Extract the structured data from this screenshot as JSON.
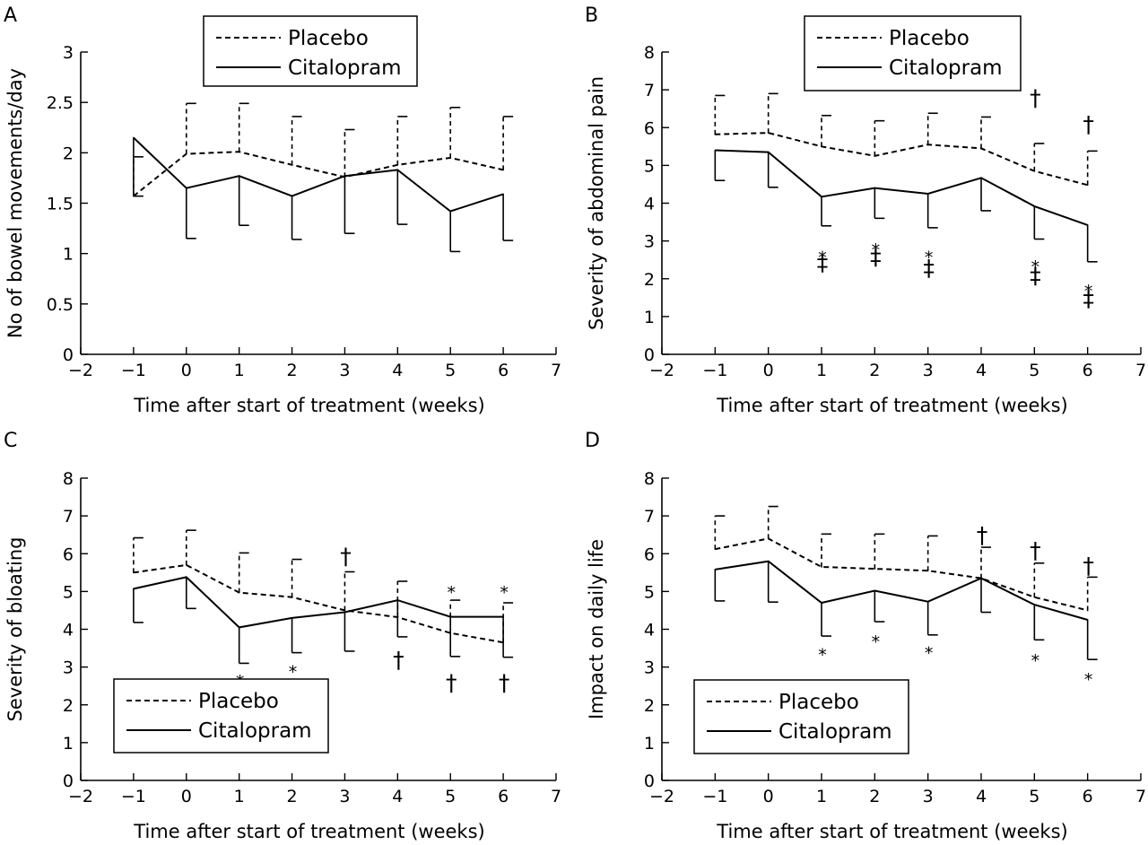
{
  "chart_data": [
    {
      "type": "line",
      "panel_label": "A",
      "xlabel": "Time after start of treatment (weeks)",
      "ylabel": "No of bowel movements/day",
      "xlim": [
        -2,
        7
      ],
      "ylim": [
        0,
        3
      ],
      "xticks": [
        "−2",
        "−1",
        "0",
        "1",
        "2",
        "3",
        "4",
        "5",
        "6",
        "7"
      ],
      "yticks": [
        "0",
        "0.5",
        "1",
        "1.5",
        "2",
        "2.5",
        "3"
      ],
      "grid": false,
      "legend_position": "top-center",
      "x": [
        -1,
        0,
        1,
        2,
        3,
        4,
        5,
        6
      ],
      "series": [
        {
          "name": "Placebo",
          "style": "dashed",
          "values": [
            1.57,
            1.99,
            2.01,
            1.88,
            1.76,
            1.88,
            1.95,
            1.83
          ],
          "error_upper": [
            1.96,
            2.49,
            2.49,
            2.36,
            2.23,
            2.36,
            2.45,
            2.36
          ]
        },
        {
          "name": "Citalopram",
          "style": "solid",
          "values": [
            2.15,
            1.65,
            1.77,
            1.57,
            1.77,
            1.83,
            1.42,
            1.59
          ],
          "error_lower": [
            1.57,
            1.15,
            1.28,
            1.14,
            1.2,
            1.29,
            1.02,
            1.13
          ]
        }
      ],
      "annotations": []
    },
    {
      "type": "line",
      "panel_label": "B",
      "xlabel": "Time after start of treatment (weeks)",
      "ylabel": "Severity of abdominal pain",
      "xlim": [
        -2,
        7
      ],
      "ylim": [
        0,
        8
      ],
      "xticks": [
        "−2",
        "−1",
        "0",
        "1",
        "2",
        "3",
        "4",
        "5",
        "6",
        "7"
      ],
      "yticks": [
        "0",
        "1",
        "2",
        "3",
        "4",
        "5",
        "6",
        "7",
        "8"
      ],
      "grid": false,
      "legend_position": "top-center",
      "x": [
        -1,
        0,
        1,
        2,
        3,
        4,
        5,
        6
      ],
      "series": [
        {
          "name": "Placebo",
          "style": "dashed",
          "values": [
            5.82,
            5.86,
            5.5,
            5.25,
            5.55,
            5.45,
            4.85,
            4.48
          ],
          "error_upper": [
            6.85,
            6.9,
            6.32,
            6.18,
            6.38,
            6.28,
            5.58,
            5.38
          ]
        },
        {
          "name": "Citalopram",
          "style": "solid",
          "values": [
            5.4,
            5.35,
            4.17,
            4.4,
            4.25,
            4.67,
            3.92,
            3.42
          ],
          "error_lower": [
            4.6,
            4.42,
            3.4,
            3.6,
            3.35,
            3.8,
            3.05,
            2.45
          ]
        }
      ],
      "annotations": [
        {
          "x": 1,
          "y": 2.7,
          "text": "*"
        },
        {
          "x": 1,
          "y": 2.45,
          "text": "‡"
        },
        {
          "x": 2,
          "y": 2.9,
          "text": "*"
        },
        {
          "x": 2,
          "y": 2.6,
          "text": "‡"
        },
        {
          "x": 3,
          "y": 2.7,
          "text": "*"
        },
        {
          "x": 3,
          "y": 2.3,
          "text": "‡"
        },
        {
          "x": 5,
          "y": 2.45,
          "text": "*"
        },
        {
          "x": 5,
          "y": 2.1,
          "text": "‡"
        },
        {
          "x": 6,
          "y": 1.8,
          "text": "*"
        },
        {
          "x": 6,
          "y": 1.5,
          "text": "‡"
        },
        {
          "x": 5,
          "y": 6.8,
          "text": "†"
        },
        {
          "x": 6,
          "y": 6.1,
          "text": "†"
        }
      ]
    },
    {
      "type": "line",
      "panel_label": "C",
      "xlabel": "Time after start of treatment (weeks)",
      "ylabel": "Severity of bloating",
      "xlim": [
        -2,
        7
      ],
      "ylim": [
        0,
        8
      ],
      "xticks": [
        "−2",
        "−1",
        "0",
        "1",
        "2",
        "3",
        "4",
        "5",
        "6",
        "7"
      ],
      "yticks": [
        "0",
        "1",
        "2",
        "3",
        "4",
        "5",
        "6",
        "7",
        "8"
      ],
      "grid": false,
      "legend_position": "bottom-left",
      "x": [
        -1,
        0,
        1,
        2,
        3,
        4,
        5,
        6
      ],
      "series": [
        {
          "name": "Placebo",
          "style": "dashed",
          "values": [
            5.5,
            5.7,
            4.97,
            4.85,
            4.5,
            4.32,
            3.9,
            3.65
          ],
          "error_upper": [
            6.42,
            6.62,
            6.02,
            5.85,
            5.52,
            5.27,
            4.77,
            4.7
          ]
        },
        {
          "name": "Citalopram",
          "style": "solid",
          "values": [
            5.07,
            5.38,
            4.05,
            4.3,
            4.45,
            4.77,
            4.33,
            4.33
          ],
          "error_lower": [
            4.18,
            4.55,
            3.1,
            3.38,
            3.42,
            3.8,
            3.28,
            3.26
          ]
        }
      ],
      "annotations": [
        {
          "x": 1,
          "y": 2.75,
          "text": "*"
        },
        {
          "x": 2,
          "y": 3.0,
          "text": "*"
        },
        {
          "x": 3,
          "y": 5.95,
          "text": "†"
        },
        {
          "x": 4,
          "y": 3.2,
          "text": "†"
        },
        {
          "x": 5,
          "y": 5.1,
          "text": "*"
        },
        {
          "x": 5,
          "y": 2.6,
          "text": "†"
        },
        {
          "x": 6,
          "y": 5.1,
          "text": "*"
        },
        {
          "x": 6,
          "y": 2.6,
          "text": "†"
        }
      ]
    },
    {
      "type": "line",
      "panel_label": "D",
      "xlabel": "Time after start of treatment (weeks)",
      "ylabel": "Impact on daily life",
      "xlim": [
        -2,
        7
      ],
      "ylim": [
        0,
        8
      ],
      "xticks": [
        "−2",
        "−1",
        "0",
        "1",
        "2",
        "3",
        "4",
        "5",
        "6",
        "7"
      ],
      "yticks": [
        "0",
        "1",
        "2",
        "3",
        "4",
        "5",
        "6",
        "7",
        "8"
      ],
      "grid": false,
      "legend_position": "bottom-left",
      "x": [
        -1,
        0,
        1,
        2,
        3,
        4,
        5,
        6
      ],
      "series": [
        {
          "name": "Placebo",
          "style": "dashed",
          "values": [
            6.12,
            6.4,
            5.65,
            5.6,
            5.55,
            5.35,
            4.85,
            4.5
          ],
          "error_upper": [
            7.0,
            7.25,
            6.52,
            6.52,
            6.47,
            6.17,
            5.75,
            5.38
          ]
        },
        {
          "name": "Citalopram",
          "style": "solid",
          "values": [
            5.58,
            5.8,
            4.7,
            5.02,
            4.73,
            5.35,
            4.65,
            4.25
          ],
          "error_lower": [
            4.75,
            4.72,
            3.82,
            4.2,
            3.85,
            4.45,
            3.72,
            3.2
          ]
        }
      ],
      "annotations": [
        {
          "x": 1,
          "y": 3.45,
          "text": "*"
        },
        {
          "x": 2,
          "y": 3.8,
          "text": "*"
        },
        {
          "x": 3,
          "y": 3.5,
          "text": "*"
        },
        {
          "x": 5,
          "y": 3.3,
          "text": "*"
        },
        {
          "x": 6,
          "y": 2.8,
          "text": "*"
        },
        {
          "x": 4,
          "y": 6.5,
          "text": "†"
        },
        {
          "x": 5,
          "y": 6.1,
          "text": "†"
        },
        {
          "x": 6,
          "y": 5.7,
          "text": "†"
        }
      ]
    }
  ]
}
